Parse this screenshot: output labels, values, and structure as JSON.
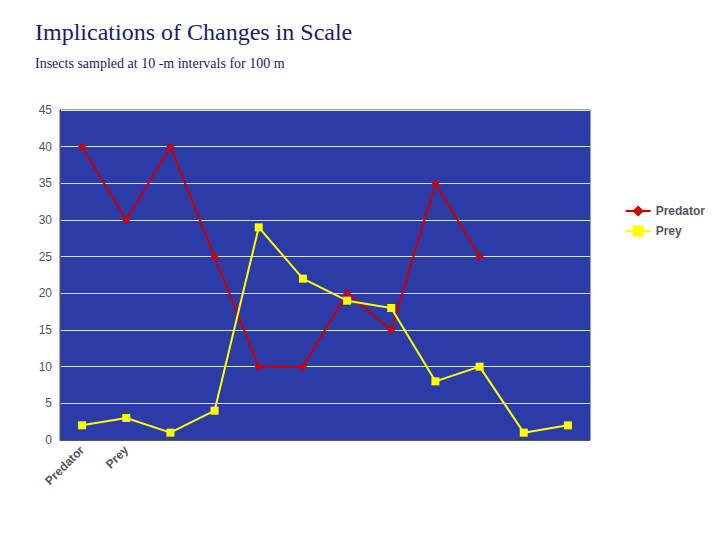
{
  "chart_data": {
    "type": "line",
    "title": "Implications of Changes in Scale",
    "subtitle": "Insects sampled at 10 -m intervals for 100 m",
    "categories": [
      "Predator",
      "Prey",
      null,
      null,
      null,
      null,
      null,
      null,
      null,
      null,
      null,
      null
    ],
    "series": [
      {
        "name": "Predator",
        "color": "#CC0000",
        "marker": "diamond",
        "values": [
          40,
          30,
          40,
          25,
          10,
          10,
          20,
          15,
          35,
          25,
          null,
          null
        ]
      },
      {
        "name": "Prey",
        "color": "#FFFF00",
        "marker": "square",
        "values": [
          2,
          3,
          1,
          4,
          29,
          22,
          19,
          18,
          8,
          10,
          1,
          2
        ]
      }
    ],
    "ylim": [
      0,
      45
    ],
    "yticks": [
      0,
      5,
      10,
      15,
      20,
      25,
      30,
      35,
      40,
      45
    ],
    "grid": true,
    "legend": "right"
  }
}
